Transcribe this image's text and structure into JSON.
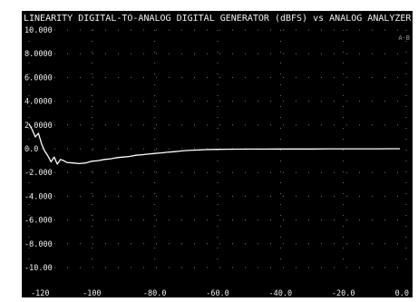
{
  "chart_data": {
    "type": "line",
    "title": "LINEARITY DIGITAL-TO-ANALOG  DIGITAL GENERATOR (dBFS) vs ANALOG ANALYZER (dBr)",
    "corner_tag": "A-B",
    "xlabel": "",
    "ylabel": "",
    "xlim": [
      -120,
      0
    ],
    "ylim": [
      -10,
      10
    ],
    "xticks": [
      -120,
      -100,
      -80,
      -60,
      -40,
      -20,
      0
    ],
    "xtick_labels": [
      "-120",
      "-100",
      "-80.0",
      "-60.0",
      "-40.0",
      "-20.0",
      "0.0"
    ],
    "yticks": [
      10,
      8,
      6,
      4,
      2,
      0,
      -2,
      -4,
      -6,
      -8,
      -10
    ],
    "ytick_labels": [
      "10.000",
      "8.0000",
      "6.0000",
      "4.0000",
      "2.0000",
      "0.0",
      "-2.000",
      "-4.000",
      "-6.000",
      "-8.000",
      "-10.00"
    ],
    "grid": "dotted",
    "colors": {
      "background": "#000000",
      "trace": "#ffffff",
      "text": "#f0f0f0",
      "grid": "#7a7a7a"
    },
    "series": [
      {
        "values": [
          [
            -120,
            2.1
          ],
          [
            -119,
            1.6
          ],
          [
            -118,
            1.0
          ],
          [
            -117,
            1.3
          ],
          [
            -116,
            0.4
          ],
          [
            -115,
            -0.2
          ],
          [
            -114,
            -0.6
          ],
          [
            -113,
            -1.1
          ],
          [
            -112,
            -0.7
          ],
          [
            -111,
            -1.3
          ],
          [
            -110,
            -0.9
          ],
          [
            -109,
            -1.0
          ],
          [
            -108,
            -1.15
          ],
          [
            -106,
            -1.2
          ],
          [
            -104,
            -1.25
          ],
          [
            -102,
            -1.2
          ],
          [
            -100,
            -1.05
          ],
          [
            -98,
            -1.0
          ],
          [
            -96,
            -0.9
          ],
          [
            -94,
            -0.85
          ],
          [
            -92,
            -0.75
          ],
          [
            -90,
            -0.7
          ],
          [
            -88,
            -0.65
          ],
          [
            -86,
            -0.55
          ],
          [
            -84,
            -0.5
          ],
          [
            -82,
            -0.45
          ],
          [
            -80,
            -0.4
          ],
          [
            -78,
            -0.35
          ],
          [
            -76,
            -0.3
          ],
          [
            -74,
            -0.25
          ],
          [
            -72,
            -0.2
          ],
          [
            -70,
            -0.15
          ],
          [
            -68,
            -0.12
          ],
          [
            -66,
            -0.1
          ],
          [
            -64,
            -0.08
          ],
          [
            -62,
            -0.06
          ],
          [
            -60,
            -0.05
          ],
          [
            -55,
            -0.04
          ],
          [
            -50,
            -0.03
          ],
          [
            -45,
            -0.03
          ],
          [
            -40,
            -0.02
          ],
          [
            -35,
            -0.02
          ],
          [
            -30,
            -0.02
          ],
          [
            -25,
            -0.01
          ],
          [
            -20,
            -0.01
          ],
          [
            -15,
            -0.01
          ],
          [
            -10,
            -0.01
          ],
          [
            -5,
            0.0
          ],
          [
            -2,
            0.0
          ]
        ]
      }
    ]
  }
}
